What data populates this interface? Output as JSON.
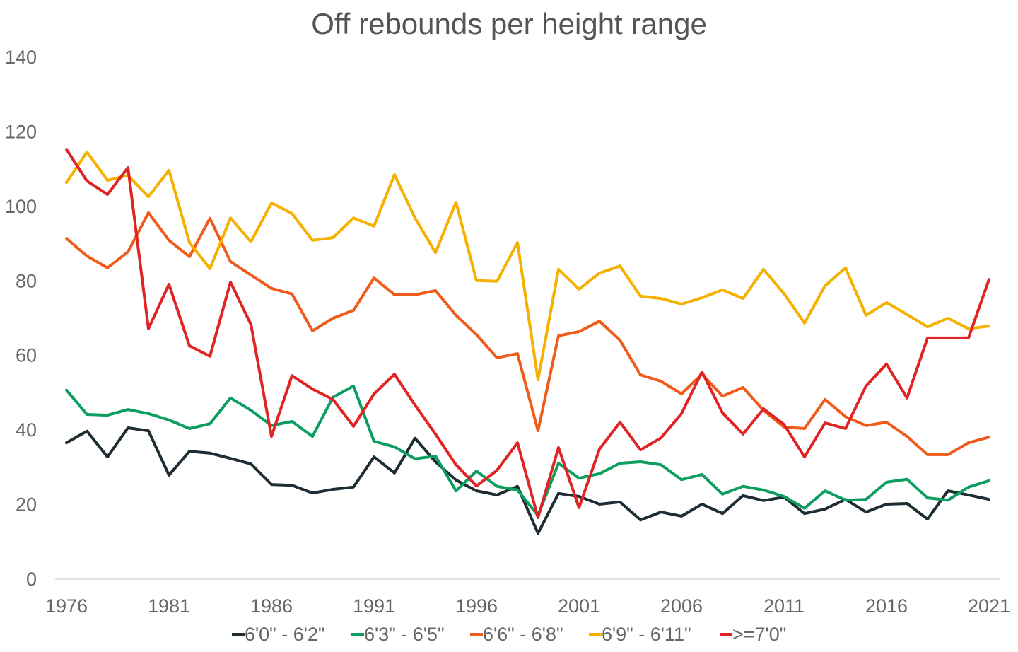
{
  "chart_data": {
    "type": "line",
    "title": "Off rebounds per height range",
    "xlabel": "",
    "ylabel": "",
    "ylim": [
      0,
      140
    ],
    "yticks": [
      0,
      20,
      40,
      60,
      80,
      100,
      120,
      140
    ],
    "xticks": [
      1976,
      1981,
      1986,
      1991,
      1996,
      2001,
      2006,
      2011,
      2016,
      2021
    ],
    "grid": false,
    "legend": "bottom",
    "x": [
      1976,
      1977,
      1978,
      1979,
      1980,
      1981,
      1982,
      1983,
      1984,
      1985,
      1986,
      1987,
      1988,
      1989,
      1990,
      1991,
      1992,
      1993,
      1994,
      1995,
      1996,
      1997,
      1998,
      1999,
      2000,
      2001,
      2002,
      2003,
      2004,
      2005,
      2006,
      2007,
      2008,
      2009,
      2010,
      2011,
      2012,
      2013,
      2014,
      2015,
      2016,
      2017,
      2018,
      2019,
      2020,
      2021
    ],
    "series": [
      {
        "name": "6'0\" - 6'2\"",
        "color": "#1e2d33",
        "values": [
          36.6,
          39.7,
          32.8,
          40.6,
          39.8,
          27.9,
          34.3,
          33.8,
          32.4,
          30.9,
          25.4,
          25.2,
          23.1,
          24.1,
          24.7,
          32.8,
          28.5,
          37.8,
          31.5,
          26.6,
          23.7,
          22.6,
          24.9,
          12.3,
          23.0,
          22.2,
          20.1,
          20.7,
          15.9,
          18.0,
          16.9,
          20.1,
          17.6,
          22.4,
          21.1,
          22.0,
          17.6,
          18.8,
          21.4,
          18.0,
          20.1,
          20.3,
          16.1,
          23.7,
          22.6,
          21.4
        ]
      },
      {
        "name": "6'3\" - 6'5\"",
        "color": "#0b9e60",
        "values": [
          50.7,
          44.2,
          44.0,
          45.5,
          44.4,
          42.7,
          40.4,
          41.7,
          48.6,
          45.3,
          41.2,
          42.3,
          38.3,
          48.8,
          51.8,
          37.0,
          35.5,
          32.3,
          33.0,
          23.7,
          29.0,
          24.9,
          23.9,
          17.1,
          31.1,
          27.1,
          28.3,
          31.1,
          31.5,
          30.7,
          26.7,
          28.1,
          22.8,
          24.9,
          23.9,
          22.2,
          19.0,
          23.7,
          21.2,
          21.4,
          26.0,
          26.8,
          21.8,
          21.2,
          24.7,
          26.4
        ]
      },
      {
        "name": "6'6\" - 6'8\"",
        "color": "#f05a1a",
        "values": [
          91.4,
          86.7,
          83.5,
          87.8,
          98.3,
          90.9,
          86.5,
          96.8,
          85.2,
          81.6,
          78.0,
          76.5,
          66.6,
          70.0,
          72.1,
          80.8,
          76.3,
          76.3,
          77.4,
          70.8,
          65.6,
          59.4,
          60.5,
          39.8,
          65.3,
          66.4,
          69.2,
          64.1,
          54.8,
          53.1,
          49.7,
          55.0,
          49.1,
          51.4,
          45.3,
          40.8,
          40.4,
          48.2,
          43.6,
          41.2,
          42.1,
          38.3,
          33.4,
          33.4,
          36.6,
          38.1
        ]
      },
      {
        "name": "6'9\" - 6'11\"",
        "color": "#f5b000",
        "values": [
          106.4,
          114.6,
          107.0,
          108.3,
          102.6,
          109.7,
          90.3,
          83.3,
          96.9,
          90.5,
          100.9,
          98.1,
          90.9,
          91.6,
          96.9,
          94.7,
          108.5,
          96.9,
          87.6,
          101.1,
          80.1,
          79.9,
          90.3,
          53.5,
          83.1,
          77.8,
          82.1,
          84.0,
          75.9,
          75.3,
          73.8,
          75.5,
          77.6,
          75.3,
          83.1,
          76.6,
          68.7,
          78.7,
          83.5,
          70.8,
          74.2,
          71.0,
          67.7,
          70.0,
          67.2,
          67.9
        ]
      },
      {
        "name": ">=7'0\"",
        "color": "#e02424",
        "values": [
          115.3,
          106.8,
          103.2,
          110.4,
          67.2,
          79.1,
          62.6,
          59.8,
          79.7,
          68.3,
          38.3,
          54.6,
          51.0,
          48.2,
          41.0,
          49.7,
          55.0,
          46.7,
          38.9,
          30.7,
          25.0,
          29.2,
          36.6,
          16.5,
          35.3,
          19.2,
          34.9,
          42.1,
          34.7,
          37.9,
          44.4,
          55.6,
          44.6,
          38.9,
          45.7,
          41.5,
          32.8,
          41.9,
          40.4,
          51.8,
          57.7,
          48.6,
          64.7,
          64.7,
          64.7,
          80.4
        ]
      }
    ]
  }
}
